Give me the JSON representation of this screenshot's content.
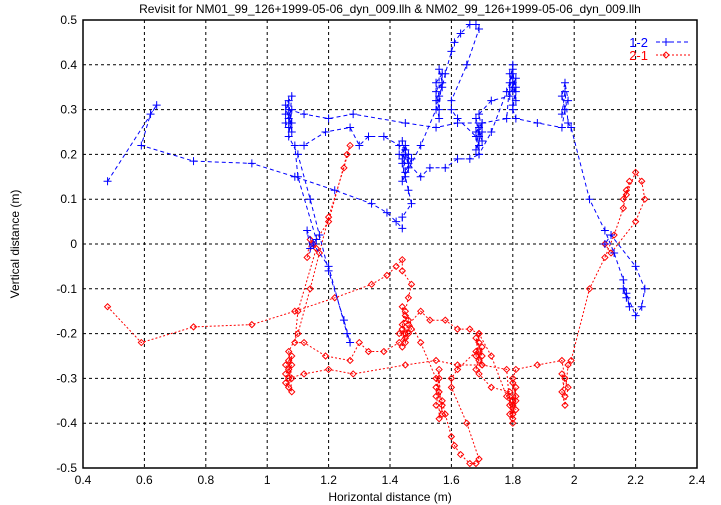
{
  "chart_data": {
    "type": "scatter",
    "title": "Revisit for NM01_99_126+1999-05-06_dyn_009.llh & NM02_99_126+1999-05-06_dyn_009.llh",
    "xlabel": "Horizontal distance (m)",
    "ylabel": "Vertical distance (m)",
    "xlim": [
      0.4,
      2.4
    ],
    "ylim": [
      -0.5,
      0.5
    ],
    "xticks": [
      "0.4",
      "0.6",
      "0.8",
      "1",
      "1.2",
      "1.4",
      "1.6",
      "1.8",
      "2",
      "2.2",
      "2.4"
    ],
    "yticks": [
      "-0.5",
      "-0.4",
      "-0.3",
      "-0.2",
      "-0.1",
      "0",
      "0.1",
      "0.2",
      "0.3",
      "0.4",
      "0.5"
    ],
    "grid": true,
    "legend_position": "top-right",
    "series": [
      {
        "name": "1-2",
        "color": "#0000ff",
        "marker": "plus",
        "line": "dashed",
        "points": [
          [
            0.48,
            0.14
          ],
          [
            0.64,
            0.31
          ],
          [
            0.62,
            0.29
          ],
          [
            0.59,
            0.22
          ],
          [
            0.76,
            0.185
          ],
          [
            0.95,
            0.18
          ],
          [
            1.09,
            0.15
          ],
          [
            1.22,
            0.12
          ],
          [
            1.34,
            0.09
          ],
          [
            1.39,
            0.07
          ],
          [
            1.42,
            0.05
          ],
          [
            1.44,
            0.035
          ],
          [
            1.44,
            0.06
          ],
          [
            1.47,
            0.09
          ],
          [
            1.46,
            0.12
          ],
          [
            1.45,
            0.15
          ],
          [
            1.44,
            0.18
          ],
          [
            1.46,
            0.2
          ],
          [
            1.45,
            0.22
          ],
          [
            1.44,
            0.19
          ],
          [
            1.46,
            0.17
          ],
          [
            1.45,
            0.21
          ],
          [
            1.43,
            0.2
          ],
          [
            1.47,
            0.19
          ],
          [
            1.45,
            0.16
          ],
          [
            1.44,
            0.23
          ],
          [
            1.46,
            0.18
          ],
          [
            1.5,
            0.15
          ],
          [
            1.53,
            0.17
          ],
          [
            1.58,
            0.17
          ],
          [
            1.62,
            0.19
          ],
          [
            1.66,
            0.19
          ],
          [
            1.69,
            0.2
          ],
          [
            1.69,
            0.22
          ],
          [
            1.68,
            0.25
          ],
          [
            1.7,
            0.27
          ],
          [
            1.69,
            0.24
          ],
          [
            1.68,
            0.28
          ],
          [
            1.7,
            0.23
          ],
          [
            1.69,
            0.26
          ],
          [
            1.68,
            0.21
          ],
          [
            1.7,
            0.25
          ],
          [
            1.69,
            0.29
          ],
          [
            1.73,
            0.32
          ],
          [
            1.79,
            0.33
          ],
          [
            1.8,
            0.35
          ],
          [
            1.81,
            0.37
          ],
          [
            1.79,
            0.34
          ],
          [
            1.8,
            0.39
          ],
          [
            1.81,
            0.32
          ],
          [
            1.8,
            0.36
          ],
          [
            1.79,
            0.38
          ],
          [
            1.81,
            0.34
          ],
          [
            1.8,
            0.31
          ],
          [
            1.8,
            0.4
          ],
          [
            1.79,
            0.36
          ],
          [
            1.78,
            0.28
          ],
          [
            1.7,
            0.27
          ],
          [
            1.62,
            0.27
          ],
          [
            1.55,
            0.26
          ],
          [
            1.45,
            0.27
          ],
          [
            1.28,
            0.29
          ],
          [
            1.2,
            0.28
          ],
          [
            1.12,
            0.29
          ],
          [
            1.07,
            0.3
          ],
          [
            1.08,
            0.27
          ],
          [
            1.06,
            0.29
          ],
          [
            1.07,
            0.32
          ],
          [
            1.08,
            0.25
          ],
          [
            1.07,
            0.28
          ],
          [
            1.06,
            0.31
          ],
          [
            1.08,
            0.33
          ],
          [
            1.07,
            0.26
          ],
          [
            1.06,
            0.27
          ],
          [
            1.08,
            0.3
          ],
          [
            1.07,
            0.24
          ],
          [
            1.1,
            0.2
          ],
          [
            1.14,
            0.1
          ],
          [
            1.17,
            0.02
          ],
          [
            1.2,
            -0.06
          ],
          [
            1.25,
            -0.17
          ],
          [
            1.27,
            -0.22
          ],
          [
            1.26,
            -0.2
          ],
          [
            1.2,
            -0.05
          ],
          [
            1.15,
            0.0
          ],
          [
            1.13,
            0.03
          ],
          [
            1.14,
            -0.01
          ],
          [
            1.16,
            0.01
          ],
          [
            1.1,
            0.15
          ],
          [
            1.09,
            0.22
          ],
          [
            1.12,
            0.22
          ],
          [
            1.19,
            0.25
          ],
          [
            1.27,
            0.26
          ],
          [
            1.3,
            0.22
          ],
          [
            1.33,
            0.24
          ],
          [
            1.38,
            0.24
          ],
          [
            1.43,
            0.22
          ],
          [
            1.45,
            0.2
          ],
          [
            1.44,
            0.14
          ],
          [
            1.5,
            0.22
          ],
          [
            1.55,
            0.3
          ],
          [
            1.56,
            0.33
          ],
          [
            1.55,
            0.36
          ],
          [
            1.57,
            0.38
          ],
          [
            1.56,
            0.3
          ],
          [
            1.55,
            0.34
          ],
          [
            1.57,
            0.36
          ],
          [
            1.56,
            0.39
          ],
          [
            1.56,
            0.28
          ],
          [
            1.55,
            0.32
          ],
          [
            1.57,
            0.35
          ],
          [
            1.58,
            0.38
          ],
          [
            1.6,
            0.43
          ],
          [
            1.61,
            0.45
          ],
          [
            1.63,
            0.47
          ],
          [
            1.66,
            0.49
          ],
          [
            1.68,
            0.49
          ],
          [
            1.69,
            0.48
          ],
          [
            1.65,
            0.4
          ],
          [
            1.6,
            0.32
          ],
          [
            1.6,
            0.3
          ],
          [
            1.62,
            0.28
          ],
          [
            1.68,
            0.24
          ],
          [
            1.69,
            0.2
          ],
          [
            1.73,
            0.25
          ],
          [
            1.78,
            0.34
          ],
          [
            1.8,
            0.38
          ],
          [
            1.81,
            0.35
          ],
          [
            1.8,
            0.3
          ],
          [
            1.81,
            0.28
          ],
          [
            1.88,
            0.27
          ],
          [
            1.96,
            0.26
          ],
          [
            1.97,
            0.3
          ],
          [
            1.96,
            0.33
          ],
          [
            1.97,
            0.36
          ],
          [
            1.98,
            0.32
          ],
          [
            1.96,
            0.29
          ],
          [
            1.97,
            0.34
          ],
          [
            1.98,
            0.27
          ],
          [
            1.99,
            0.26
          ],
          [
            2.05,
            0.1
          ],
          [
            2.1,
            0.03
          ],
          [
            2.13,
            -0.02
          ],
          [
            2.16,
            -0.08
          ],
          [
            2.17,
            -0.12
          ],
          [
            2.16,
            -0.1
          ],
          [
            2.18,
            -0.14
          ],
          [
            2.17,
            -0.11
          ],
          [
            2.2,
            -0.16
          ],
          [
            2.22,
            -0.14
          ],
          [
            2.23,
            -0.1
          ],
          [
            2.2,
            -0.05
          ],
          [
            2.12,
            0.02
          ],
          [
            2.1,
            0.0
          ]
        ]
      },
      {
        "name": "2-1",
        "color": "#ff0000",
        "marker": "diamond",
        "line": "dotted",
        "points": [
          [
            0.48,
            -0.14
          ],
          [
            0.59,
            -0.22
          ],
          [
            0.76,
            -0.185
          ],
          [
            0.95,
            -0.18
          ],
          [
            1.09,
            -0.15
          ],
          [
            1.22,
            -0.12
          ],
          [
            1.34,
            -0.09
          ],
          [
            1.39,
            -0.07
          ],
          [
            1.42,
            -0.05
          ],
          [
            1.44,
            -0.035
          ],
          [
            1.44,
            -0.06
          ],
          [
            1.47,
            -0.09
          ],
          [
            1.46,
            -0.12
          ],
          [
            1.45,
            -0.15
          ],
          [
            1.44,
            -0.18
          ],
          [
            1.46,
            -0.2
          ],
          [
            1.45,
            -0.22
          ],
          [
            1.44,
            -0.19
          ],
          [
            1.46,
            -0.17
          ],
          [
            1.45,
            -0.21
          ],
          [
            1.43,
            -0.2
          ],
          [
            1.47,
            -0.19
          ],
          [
            1.45,
            -0.16
          ],
          [
            1.44,
            -0.23
          ],
          [
            1.46,
            -0.18
          ],
          [
            1.5,
            -0.15
          ],
          [
            1.53,
            -0.17
          ],
          [
            1.58,
            -0.17
          ],
          [
            1.62,
            -0.19
          ],
          [
            1.66,
            -0.19
          ],
          [
            1.69,
            -0.2
          ],
          [
            1.69,
            -0.22
          ],
          [
            1.68,
            -0.25
          ],
          [
            1.7,
            -0.27
          ],
          [
            1.69,
            -0.24
          ],
          [
            1.68,
            -0.28
          ],
          [
            1.7,
            -0.23
          ],
          [
            1.69,
            -0.26
          ],
          [
            1.68,
            -0.21
          ],
          [
            1.7,
            -0.25
          ],
          [
            1.69,
            -0.29
          ],
          [
            1.73,
            -0.32
          ],
          [
            1.79,
            -0.33
          ],
          [
            1.8,
            -0.35
          ],
          [
            1.81,
            -0.37
          ],
          [
            1.79,
            -0.34
          ],
          [
            1.8,
            -0.39
          ],
          [
            1.81,
            -0.32
          ],
          [
            1.8,
            -0.36
          ],
          [
            1.79,
            -0.38
          ],
          [
            1.81,
            -0.34
          ],
          [
            1.8,
            -0.31
          ],
          [
            1.8,
            -0.4
          ],
          [
            1.79,
            -0.36
          ],
          [
            1.78,
            -0.28
          ],
          [
            1.7,
            -0.27
          ],
          [
            1.62,
            -0.27
          ],
          [
            1.55,
            -0.26
          ],
          [
            1.45,
            -0.27
          ],
          [
            1.28,
            -0.29
          ],
          [
            1.2,
            -0.28
          ],
          [
            1.12,
            -0.29
          ],
          [
            1.07,
            -0.3
          ],
          [
            1.08,
            -0.27
          ],
          [
            1.06,
            -0.29
          ],
          [
            1.07,
            -0.32
          ],
          [
            1.08,
            -0.25
          ],
          [
            1.07,
            -0.28
          ],
          [
            1.06,
            -0.31
          ],
          [
            1.08,
            -0.33
          ],
          [
            1.07,
            -0.26
          ],
          [
            1.06,
            -0.27
          ],
          [
            1.08,
            -0.3
          ],
          [
            1.07,
            -0.24
          ],
          [
            1.1,
            -0.2
          ],
          [
            1.14,
            -0.1
          ],
          [
            1.17,
            -0.02
          ],
          [
            1.2,
            0.06
          ],
          [
            1.25,
            0.17
          ],
          [
            1.27,
            0.22
          ],
          [
            1.26,
            0.2
          ],
          [
            1.2,
            0.05
          ],
          [
            1.15,
            0.0
          ],
          [
            1.13,
            -0.03
          ],
          [
            1.14,
            0.01
          ],
          [
            1.16,
            -0.01
          ],
          [
            1.1,
            -0.15
          ],
          [
            1.09,
            -0.22
          ],
          [
            1.12,
            -0.22
          ],
          [
            1.19,
            -0.25
          ],
          [
            1.27,
            -0.26
          ],
          [
            1.3,
            -0.22
          ],
          [
            1.33,
            -0.24
          ],
          [
            1.38,
            -0.24
          ],
          [
            1.43,
            -0.22
          ],
          [
            1.45,
            -0.2
          ],
          [
            1.44,
            -0.14
          ],
          [
            1.5,
            -0.22
          ],
          [
            1.55,
            -0.3
          ],
          [
            1.56,
            -0.33
          ],
          [
            1.55,
            -0.36
          ],
          [
            1.57,
            -0.38
          ],
          [
            1.56,
            -0.3
          ],
          [
            1.55,
            -0.34
          ],
          [
            1.57,
            -0.36
          ],
          [
            1.56,
            -0.39
          ],
          [
            1.56,
            -0.28
          ],
          [
            1.55,
            -0.32
          ],
          [
            1.57,
            -0.35
          ],
          [
            1.58,
            -0.38
          ],
          [
            1.6,
            -0.43
          ],
          [
            1.61,
            -0.45
          ],
          [
            1.63,
            -0.47
          ],
          [
            1.66,
            -0.49
          ],
          [
            1.68,
            -0.49
          ],
          [
            1.69,
            -0.48
          ],
          [
            1.65,
            -0.4
          ],
          [
            1.6,
            -0.32
          ],
          [
            1.6,
            -0.3
          ],
          [
            1.62,
            -0.28
          ],
          [
            1.68,
            -0.24
          ],
          [
            1.69,
            -0.2
          ],
          [
            1.73,
            -0.25
          ],
          [
            1.78,
            -0.34
          ],
          [
            1.8,
            -0.38
          ],
          [
            1.81,
            -0.35
          ],
          [
            1.8,
            -0.3
          ],
          [
            1.81,
            -0.28
          ],
          [
            1.88,
            -0.27
          ],
          [
            1.96,
            -0.26
          ],
          [
            1.97,
            -0.3
          ],
          [
            1.96,
            -0.33
          ],
          [
            1.97,
            -0.36
          ],
          [
            1.98,
            -0.32
          ],
          [
            1.96,
            -0.29
          ],
          [
            1.97,
            -0.34
          ],
          [
            1.98,
            -0.27
          ],
          [
            1.99,
            -0.26
          ],
          [
            2.05,
            -0.1
          ],
          [
            2.1,
            -0.03
          ],
          [
            2.13,
            0.02
          ],
          [
            2.16,
            0.08
          ],
          [
            2.17,
            0.12
          ],
          [
            2.16,
            0.1
          ],
          [
            2.18,
            0.14
          ],
          [
            2.17,
            0.11
          ],
          [
            2.2,
            0.16
          ],
          [
            2.22,
            0.14
          ],
          [
            2.23,
            0.1
          ],
          [
            2.2,
            0.05
          ],
          [
            2.12,
            -0.02
          ],
          [
            2.1,
            0.0
          ]
        ]
      }
    ]
  }
}
